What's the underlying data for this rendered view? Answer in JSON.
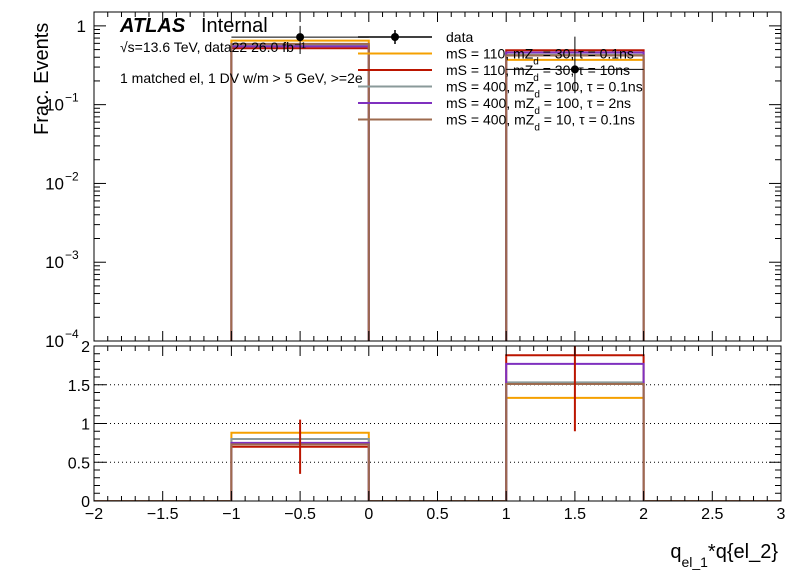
{
  "chart_data": [
    {
      "panel": "main",
      "type": "histogram",
      "ylabel": "Frac. Events",
      "y_scale": "log",
      "ylim": [
        0.0001,
        1.5
      ],
      "xlim": [
        -2,
        3
      ],
      "y_ticks": [
        {
          "value": 1,
          "base": "1",
          "exp": ""
        },
        {
          "value": 0.1,
          "base": "10",
          "exp": "−1"
        },
        {
          "value": 0.01,
          "base": "10",
          "exp": "−2"
        },
        {
          "value": 0.001,
          "base": "10",
          "exp": "−3"
        },
        {
          "value": 0.0001,
          "base": "10",
          "exp": "−4"
        }
      ],
      "bins": [
        [
          -2,
          -1
        ],
        [
          -1,
          0
        ],
        [
          0,
          1
        ],
        [
          1,
          2
        ],
        [
          2,
          3
        ]
      ],
      "series": [
        {
          "name": "data",
          "color": "#000000",
          "style": "points",
          "points": [
            {
              "x": -0.5,
              "y": 0.72,
              "err_lo": 0.28,
              "err_hi": 0.28
            },
            {
              "x": 1.5,
              "y": 0.28,
              "err_lo": 0.14,
              "err_hi": 0.45
            }
          ]
        },
        {
          "color": "#f5a000",
          "values": [
            0,
            0.65,
            0,
            0.37,
            0
          ]
        },
        {
          "color": "#bb1500",
          "values": [
            0,
            0.52,
            0,
            0.49,
            0
          ]
        },
        {
          "color": "#8a9a9a",
          "values": [
            0,
            0.57,
            0,
            0.43,
            0
          ]
        },
        {
          "color": "#7f30bf",
          "values": [
            0,
            0.55,
            0,
            0.46,
            0
          ]
        },
        {
          "color": "#9d6a4e",
          "values": [
            0,
            0.59,
            0,
            0.42,
            0
          ]
        }
      ],
      "annotations": {
        "atlas": "ATLAS",
        "internal": "Internal",
        "energy": "√s=13.6 TeV, data22 26.0 fb⁻¹",
        "selection": "1 matched el, 1 DV w/m > 5 GeV, >=2e"
      },
      "legend": {
        "placement": "top-right",
        "entries": [
          {
            "label": "data",
            "color": "#000000",
            "kind": "marker"
          },
          {
            "label": "mS = 110, mZ_d = 30, τ = 0.1ns",
            "color": "#f5a000",
            "kind": "line",
            "pre": "mS = 110, mZ",
            "sup": "d",
            "post": " = 30, τ = 0.1ns"
          },
          {
            "label": "mS = 110, mZ_d = 30, τ = 10ns",
            "color": "#bb1500",
            "kind": "line",
            "pre": "mS = 110, mZ",
            "sup": "d",
            "post": " = 30, τ = 10ns"
          },
          {
            "label": "mS = 400, mZ_d = 100, τ = 0.1ns",
            "color": "#8a9a9a",
            "kind": "line",
            "pre": "mS = 400, mZ",
            "sup": "d",
            "post": " = 100, τ = 0.1ns"
          },
          {
            "label": "mS = 400, mZ_d = 100, τ = 2ns",
            "color": "#7f30bf",
            "kind": "line",
            "pre": "mS = 400, mZ",
            "sup": "d",
            "post": " = 100, τ = 2ns"
          },
          {
            "label": "mS = 400, mZ_d = 10, τ = 0.1ns",
            "color": "#9d6a4e",
            "kind": "line",
            "pre": "mS = 400, mZ",
            "sup": "d",
            "post": " = 10, τ = 0.1ns"
          }
        ]
      }
    },
    {
      "panel": "ratio",
      "type": "histogram",
      "ylim": [
        0,
        2
      ],
      "y_ticks": [
        "0",
        "0.5",
        "1",
        "1.5",
        "2"
      ],
      "xlim": [
        -2,
        3
      ],
      "x_ticks": [
        "−2",
        "−1.5",
        "−1",
        "−0.5",
        "0",
        "0.5",
        "1",
        "1.5",
        "2",
        "2.5",
        "3"
      ],
      "xlabel": {
        "pre": "q",
        "sub": "el_1",
        "post": "*q{el_2}"
      },
      "grid_y": true,
      "series": [
        {
          "color": "#f5a000",
          "values": [
            0,
            0.88,
            0,
            1.33,
            0
          ]
        },
        {
          "color": "#bb1500",
          "values": [
            0,
            0.7,
            0,
            1.88,
            0
          ]
        },
        {
          "color": "#8a9a9a",
          "values": [
            0,
            0.8,
            0,
            1.53,
            0
          ]
        },
        {
          "color": "#7f30bf",
          "values": [
            0,
            0.75,
            0,
            1.77,
            0
          ]
        },
        {
          "color": "#9d6a4e",
          "values": [
            0,
            0.73,
            0,
            1.51,
            0
          ]
        }
      ],
      "errors": [
        {
          "x": -0.5,
          "y_lo": 0.35,
          "y_hi": 1.05,
          "color": "#bb1500"
        },
        {
          "x": 1.5,
          "y_lo": 0.9,
          "y_hi": 2.0,
          "color": "#bb1500"
        }
      ]
    }
  ]
}
